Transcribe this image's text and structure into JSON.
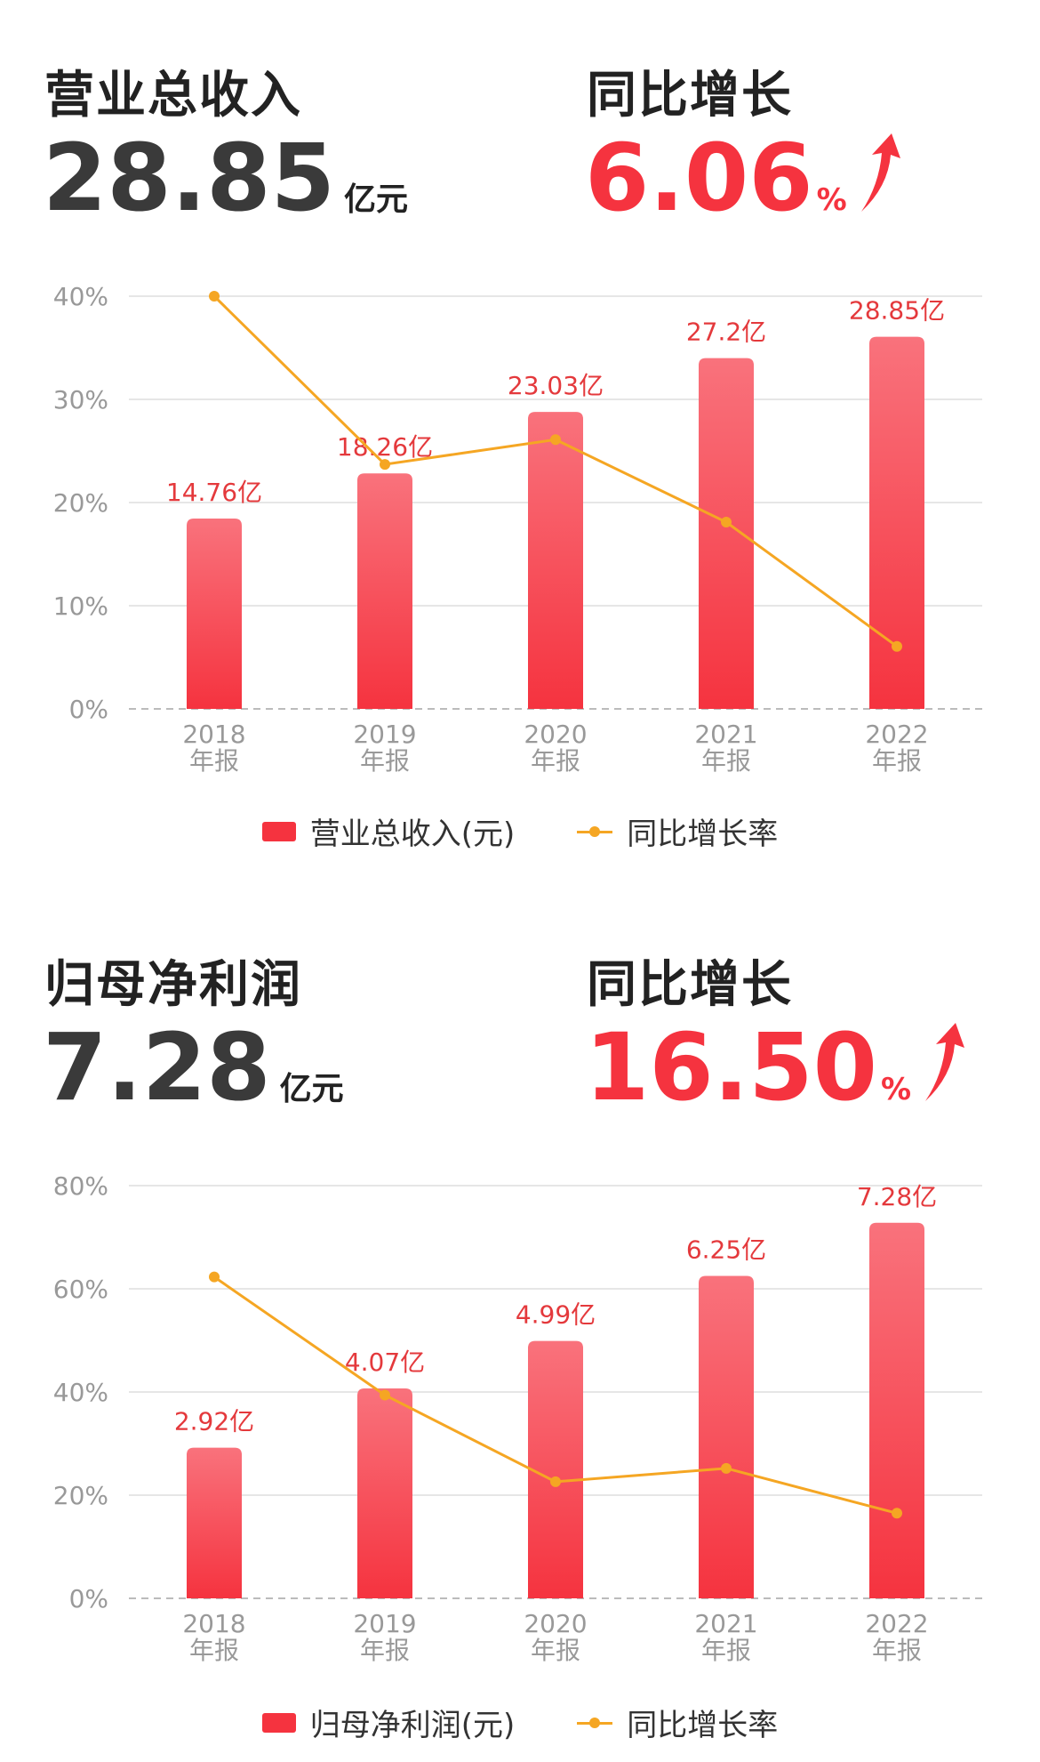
{
  "colors": {
    "bar_top": "#f9727c",
    "bar_bottom": "#f5333f",
    "line": "#f5a623",
    "label": "#e4393c",
    "axis_text": "#999999"
  },
  "revenue": {
    "title": "营业总收入",
    "value": "28.85",
    "unit": "亿元",
    "growth_title": "同比增长",
    "growth_value": "6.06",
    "growth_unit": "%",
    "legend_bar": "营业总收入(元)",
    "legend_line": "同比增长率"
  },
  "profit": {
    "title": "归母净利润",
    "value": "7.28",
    "unit": "亿元",
    "growth_title": "同比增长",
    "growth_value": "16.50",
    "growth_unit": "%",
    "legend_bar": "归母净利润(元)",
    "legend_line": "同比增长率"
  },
  "chart_data": [
    {
      "type": "bar",
      "categories": [
        "2018\n年报",
        "2019\n年报",
        "2020\n年报",
        "2021\n年报",
        "2022\n年报"
      ],
      "y_ticks": [
        "0%",
        "10%",
        "20%",
        "30%",
        "40%"
      ],
      "ylim": [
        0,
        40
      ],
      "series": [
        {
          "name": "营业总收入(元)",
          "type": "bar",
          "values": [
            14.76,
            18.26,
            23.03,
            27.2,
            28.85
          ],
          "labels": [
            "14.76亿",
            "18.26亿",
            "23.03亿",
            "27.2亿",
            "28.85亿"
          ]
        },
        {
          "name": "同比增长率",
          "type": "line",
          "values": [
            40,
            23.7,
            26.1,
            18.1,
            6.06
          ]
        }
      ],
      "bar_scale_max": 32,
      "grid": true,
      "legend": "bottom"
    },
    {
      "type": "bar",
      "categories": [
        "2018\n年报",
        "2019\n年报",
        "2020\n年报",
        "2021\n年报",
        "2022\n年报"
      ],
      "y_ticks": [
        "0%",
        "20%",
        "40%",
        "60%",
        "80%"
      ],
      "ylim": [
        0,
        80
      ],
      "series": [
        {
          "name": "归母净利润(元)",
          "type": "bar",
          "values": [
            2.92,
            4.07,
            4.99,
            6.25,
            7.28
          ],
          "labels": [
            "2.92亿",
            "4.07亿",
            "4.99亿",
            "6.25亿",
            "7.28亿"
          ]
        },
        {
          "name": "同比增长率",
          "type": "line",
          "values": [
            62.3,
            39.4,
            22.6,
            25.2,
            16.5
          ]
        }
      ],
      "bar_scale_max": 8,
      "grid": true,
      "legend": "bottom"
    }
  ]
}
